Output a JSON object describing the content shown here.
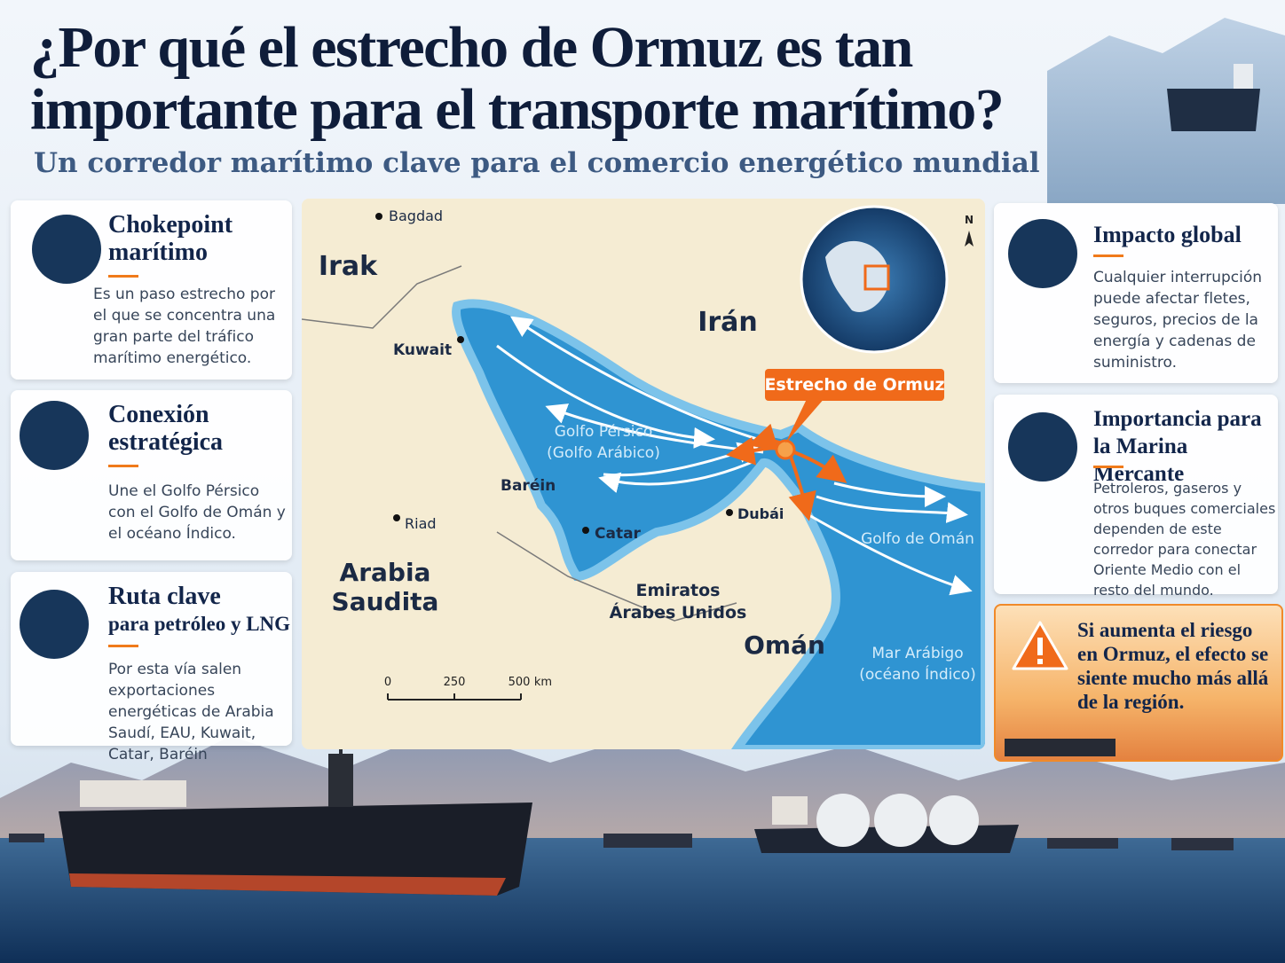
{
  "header": {
    "title_line1": "¿Por qué el estrecho de Ormuz es tan",
    "title_line2": "importante para el transporte marítimo?",
    "subtitle": "Un corredor marítimo clave para el comercio energético mundial"
  },
  "left_cards": [
    {
      "title": [
        "Chokepoint",
        "marítimo"
      ],
      "body": "Es un paso estrecho por el que se concentra una gran parte del tráfico marítimo energético."
    },
    {
      "title": [
        "Conexión",
        "estratégica"
      ],
      "body": "Une el Golfo Pérsico con el Golfo de Omán y el océano Índico."
    },
    {
      "title": [
        "Ruta clave",
        "para petróleo y LNG"
      ],
      "body": "Por esta vía salen exportaciones energéticas de Arabia Saudí, EAU, Kuwait, Catar, Baréin"
    }
  ],
  "right_cards": [
    {
      "title": [
        "Impacto global"
      ],
      "body": "Cualquier interrupción puede afectar fletes, seguros, precios de la energía y cadenas de suministro."
    },
    {
      "title": [
        "Importancia para",
        "la Marina Mercante"
      ],
      "body": "Petroleros, gaseros y otros buques comerciales dependen de este corredor para conectar Oriente Medio con el resto del mundo."
    }
  ],
  "warning": "Si aumenta el riesgo en Ormuz, el efecto se siente mucho más allá de la región.",
  "map": {
    "callout": "Estrecho de Ormuz",
    "compass": "N",
    "countries": [
      "Irak",
      "Irán",
      "Arabia Saudita",
      "Emiratos Árabes Unidos",
      "Omán"
    ],
    "cities": [
      "Bagdad",
      "Kuwait",
      "Baréin",
      "Riad",
      "Catar",
      "Dubái"
    ],
    "waters": [
      "Golfo Pérsico (Golfo Arábico)",
      "Golfo de Omán",
      "Mar Arábigo (océano Índico)"
    ],
    "scale": {
      "ticks": [
        "0",
        "250",
        "500"
      ],
      "unit": "km"
    }
  }
}
